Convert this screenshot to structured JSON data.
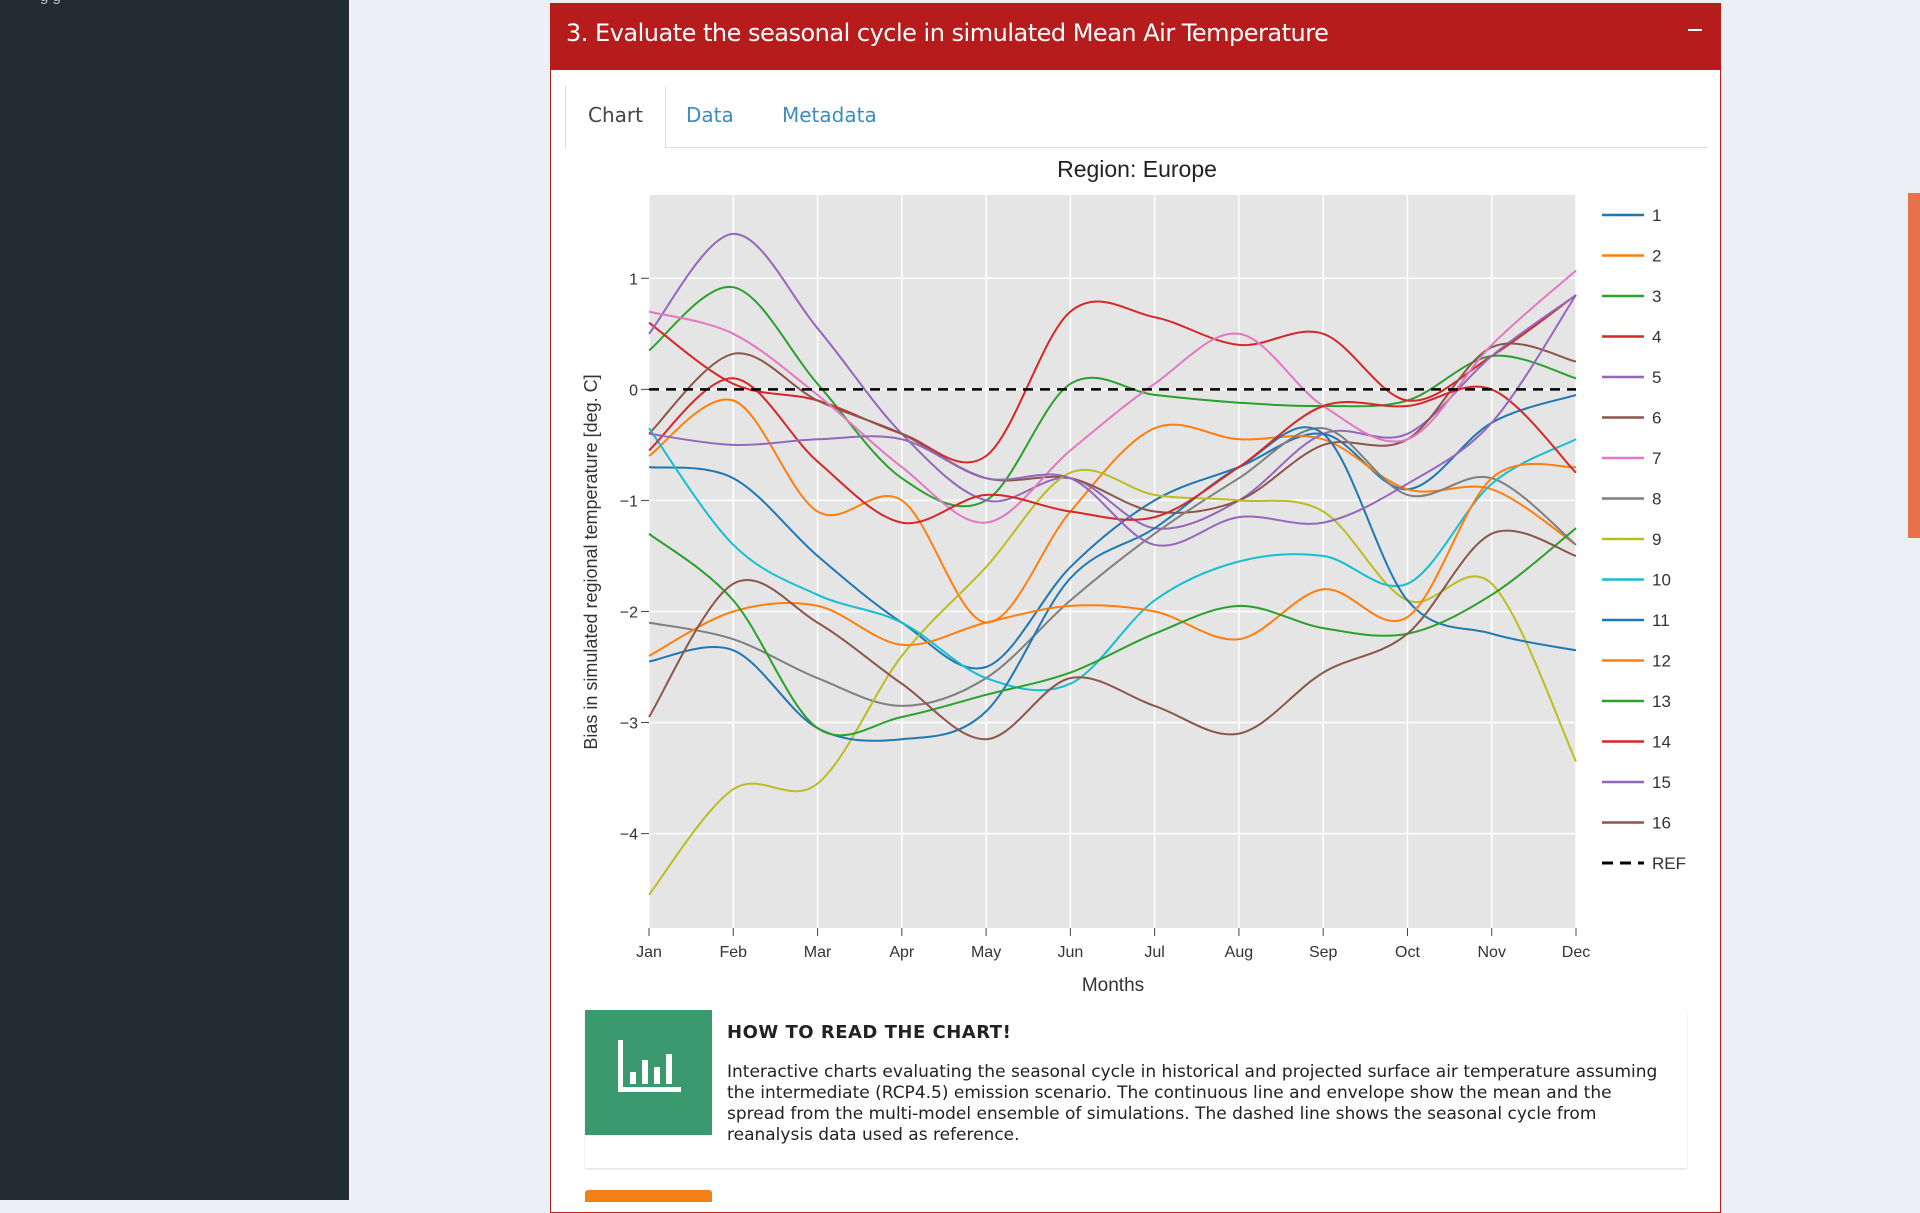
{
  "sidebar": {
    "clipped_item": "g          g"
  },
  "box": {
    "title": "3. Evaluate the seasonal cycle in simulated Mean Air Temperature"
  },
  "tabs": [
    {
      "label": "Chart",
      "active": true
    },
    {
      "label": "Data",
      "active": false
    },
    {
      "label": "Metadata",
      "active": false
    }
  ],
  "icons": {
    "collapse": "minus-icon",
    "info": "bar-chart-icon"
  },
  "colors": {
    "header": "#b71c1c",
    "info_icon_bg": "#3a9a6e",
    "scroll_accent": "#e8724c",
    "tab_link": "#3c8dbc"
  },
  "chart_data": {
    "type": "line",
    "title": "Region:  Europe",
    "xlabel": "Months",
    "ylabel": "Bias in simulated regional temperature [deg. C]",
    "categories": [
      "Jan",
      "Feb",
      "Mar",
      "Apr",
      "May",
      "Jun",
      "Jul",
      "Aug",
      "Sep",
      "Oct",
      "Nov",
      "Dec"
    ],
    "yticks": [
      1,
      0,
      -1,
      -2,
      -3,
      -4
    ],
    "ytick_labels": [
      "1",
      "0",
      "−1",
      "−2",
      "−3",
      "−4"
    ],
    "ylim": [
      -4.85,
      1.75
    ],
    "grid": true,
    "legend_position": "right",
    "series": [
      {
        "name": "1",
        "color": "#1f77b4",
        "values": [
          -0.7,
          -0.8,
          -1.5,
          -2.1,
          -2.5,
          -1.6,
          -1.0,
          -0.7,
          -0.4,
          -0.9,
          -0.3,
          -0.05
        ]
      },
      {
        "name": "2",
        "color": "#ff7f0e",
        "values": [
          -0.6,
          -0.1,
          -1.1,
          -1.0,
          -2.1,
          -1.1,
          -0.35,
          -0.45,
          -0.45,
          -0.9,
          -0.9,
          -1.4
        ]
      },
      {
        "name": "3",
        "color": "#2ca02c",
        "values": [
          0.35,
          0.92,
          0.05,
          -0.8,
          -1.0,
          0.05,
          -0.05,
          -0.12,
          -0.15,
          -0.1,
          0.3,
          0.1
        ]
      },
      {
        "name": "4",
        "color": "#d62728",
        "values": [
          0.6,
          0.05,
          -0.1,
          -0.4,
          -0.6,
          0.7,
          0.65,
          0.4,
          0.5,
          -0.1,
          0.3,
          0.85
        ]
      },
      {
        "name": "5",
        "color": "#9467bd",
        "values": [
          0.5,
          1.4,
          0.55,
          -0.4,
          -1.0,
          -0.8,
          -1.25,
          -1.0,
          -0.4,
          -0.4,
          0.3,
          0.85
        ]
      },
      {
        "name": "6",
        "color": "#8c564b",
        "values": [
          -0.4,
          0.32,
          -0.1,
          -0.4,
          -0.8,
          -0.8,
          -1.1,
          -1.0,
          -0.5,
          -0.45,
          0.38,
          0.25
        ]
      },
      {
        "name": "7",
        "color": "#e377c2",
        "values": [
          0.7,
          0.5,
          -0.05,
          -0.7,
          -1.2,
          -0.55,
          0.05,
          0.5,
          -0.15,
          -0.45,
          0.4,
          1.07
        ]
      },
      {
        "name": "8",
        "color": "#7f7f7f",
        "values": [
          -2.1,
          -2.25,
          -2.6,
          -2.85,
          -2.6,
          -1.9,
          -1.3,
          -0.8,
          -0.35,
          -0.95,
          -0.8,
          -1.4
        ]
      },
      {
        "name": "9",
        "color": "#bcbd22",
        "values": [
          -4.55,
          -3.6,
          -3.55,
          -2.4,
          -1.6,
          -0.75,
          -0.95,
          -1.0,
          -1.1,
          -1.9,
          -1.75,
          -3.35
        ]
      },
      {
        "name": "10",
        "color": "#17becf",
        "values": [
          -0.35,
          -1.4,
          -1.85,
          -2.1,
          -2.6,
          -2.65,
          -1.9,
          -1.55,
          -1.5,
          -1.75,
          -0.85,
          -0.45
        ]
      },
      {
        "name": "11",
        "color": "#1f77b4",
        "values": [
          -2.45,
          -2.35,
          -3.05,
          -3.15,
          -2.9,
          -1.7,
          -1.25,
          -0.7,
          -0.4,
          -1.9,
          -2.2,
          -2.35
        ]
      },
      {
        "name": "12",
        "color": "#ff7f0e",
        "values": [
          -2.4,
          -2.0,
          -1.95,
          -2.3,
          -2.1,
          -1.95,
          -2.0,
          -2.25,
          -1.8,
          -2.05,
          -0.8,
          -0.7
        ]
      },
      {
        "name": "13",
        "color": "#2ca02c",
        "values": [
          -1.3,
          -1.9,
          -3.05,
          -2.95,
          -2.75,
          -2.55,
          -2.2,
          -1.95,
          -2.15,
          -2.2,
          -1.85,
          -1.25
        ]
      },
      {
        "name": "14",
        "color": "#d62728",
        "values": [
          -0.55,
          0.1,
          -0.65,
          -1.2,
          -0.95,
          -1.1,
          -1.15,
          -0.7,
          -0.15,
          -0.15,
          0.0,
          -0.75
        ]
      },
      {
        "name": "15",
        "color": "#9467bd",
        "values": [
          -0.4,
          -0.5,
          -0.45,
          -0.45,
          -0.8,
          -0.8,
          -1.4,
          -1.15,
          -1.2,
          -0.85,
          -0.3,
          0.85
        ]
      },
      {
        "name": "16",
        "color": "#8c564b",
        "values": [
          -2.95,
          -1.75,
          -2.1,
          -2.65,
          -3.15,
          -2.6,
          -2.85,
          -3.1,
          -2.55,
          -2.2,
          -1.3,
          -1.5
        ]
      },
      {
        "name": "REF",
        "color": "#000000",
        "dashed": true,
        "values": [
          0,
          0,
          0,
          0,
          0,
          0,
          0,
          0,
          0,
          0,
          0,
          0
        ]
      }
    ]
  },
  "info": {
    "title": "HOW TO READ THE CHART!",
    "text": "Interactive charts evaluating the seasonal cycle in historical and projected surface air temperature assuming the intermediate (RCP4.5) emission scenario. The continuous line and envelope show the mean and the spread from the multi-model ensemble of simulations. The dashed line shows the seasonal cycle from reanalysis data used as reference."
  }
}
